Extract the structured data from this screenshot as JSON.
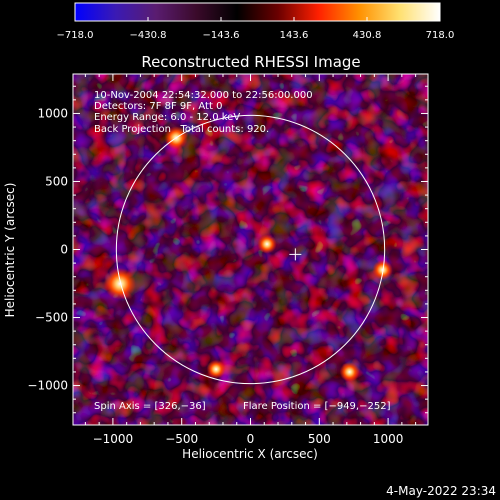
{
  "chart_data": {
    "type": "heatmap",
    "title": "Reconstructed RHESSI Image",
    "xlabel": "Heliocentric X (arcsec)",
    "ylabel": "Heliocentric Y (arcsec)",
    "xlim": [
      -1290,
      1290
    ],
    "ylim": [
      -1290,
      1290
    ],
    "xticks": [
      -1000,
      -500,
      0,
      500,
      1000
    ],
    "yticks": [
      -1000,
      -500,
      0,
      500,
      1000
    ],
    "xtick_labels": [
      "−1000",
      "−500",
      "0",
      "500",
      "1000"
    ],
    "ytick_labels": [
      "−1000",
      "−500",
      "0",
      "500",
      "1000"
    ],
    "colorbar": {
      "range": [
        -718.0,
        718.0
      ],
      "ticks": [
        -718.0,
        -430.8,
        -143.6,
        143.6,
        430.8,
        718.0
      ],
      "tick_labels": [
        "−718.0",
        "−430.8",
        "−143.6",
        "143.6",
        "430.8",
        "718.0"
      ],
      "colors": [
        "#0000ff",
        "#3a1ab4",
        "#5a1c70",
        "#3a0a2a",
        "#000000",
        "#6a0000",
        "#ff2000",
        "#ff9000",
        "#ffe070",
        "#ffffff"
      ]
    },
    "annotations": [
      "10-Nov-2004 22:54:32.000 to 22:56:00.000",
      "Detectors: 7F 8F 9F, Att 0",
      "Energy Range: 6.0 - 12.0 keV",
      "Back Projection   Total counts: 920."
    ],
    "spin_axis": {
      "label": "Spin Axis = [326,−36]",
      "x": 326,
      "y": -36
    },
    "flare_position": {
      "label": "Flare Position = [−949,−252]",
      "x": -949,
      "y": -252
    },
    "solar_limb_radius": 975,
    "bright_sources": [
      {
        "x": -949,
        "y": -252,
        "value": 718
      },
      {
        "x": -540,
        "y": 820,
        "value": 420
      },
      {
        "x": 960,
        "y": -150,
        "value": 300
      },
      {
        "x": 120,
        "y": 40,
        "value": 260
      },
      {
        "x": 720,
        "y": -900,
        "value": 280
      },
      {
        "x": -250,
        "y": -880,
        "value": 240
      }
    ]
  },
  "footer": {
    "timestamp": "4-May-2022 23:34"
  }
}
